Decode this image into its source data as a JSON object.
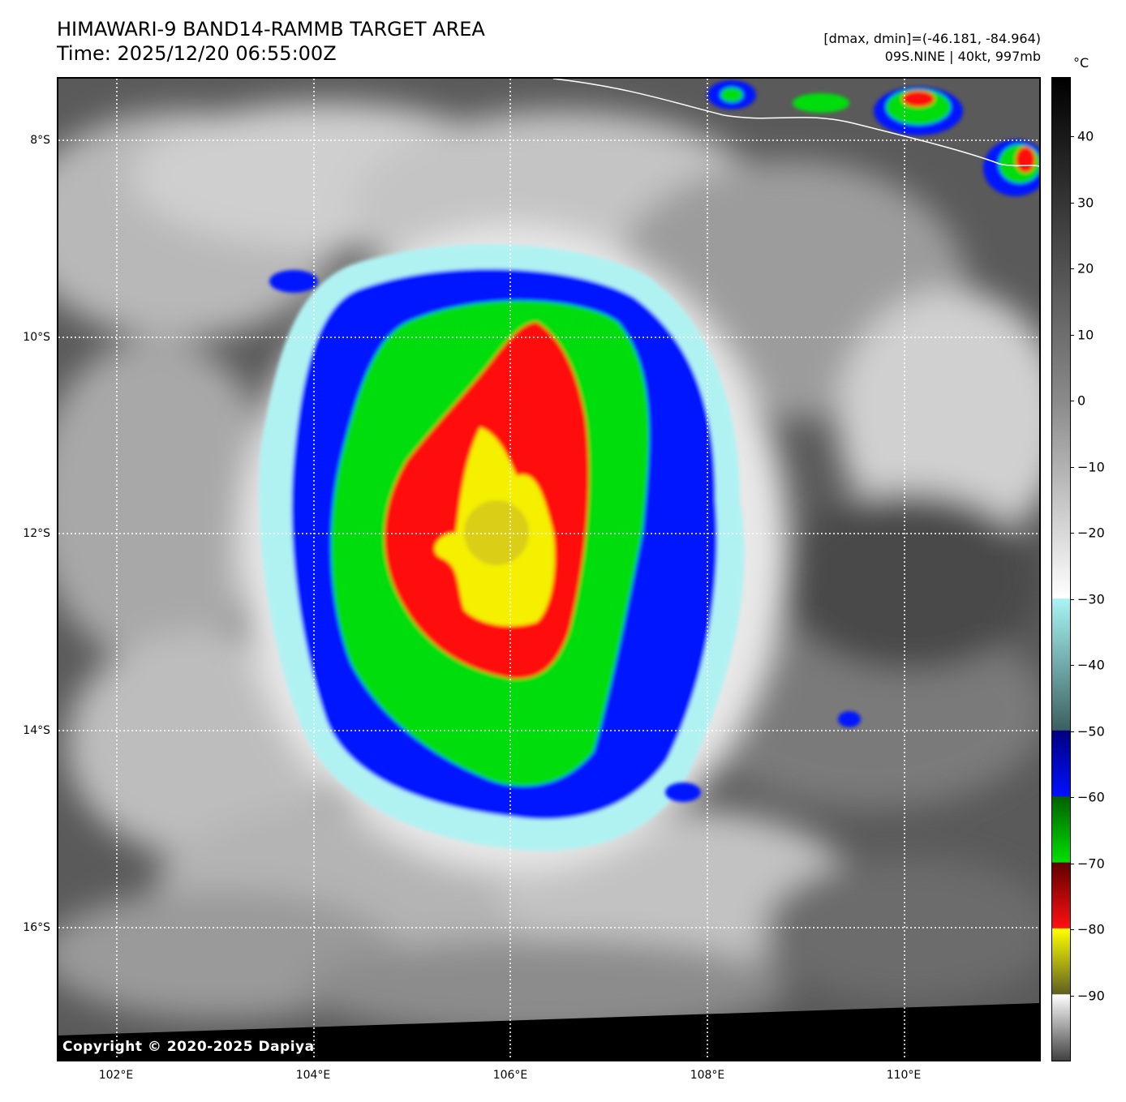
{
  "header": {
    "title_line1": "HIMAWARI-9 BAND14-RAMMB TARGET AREA",
    "title_line2": "Time: 2025/12/20 06:55:00Z",
    "range_info": "[dmax, dmin]=(-46.181, -84.964)",
    "storm_info": "09S.NINE | 40kt, 997mb"
  },
  "map": {
    "copyright": "Copyright © 2020-2025 Dapiya",
    "lat_labels": [
      "8°S",
      "10°S",
      "12°S",
      "14°S",
      "16°S"
    ],
    "lon_labels": [
      "102°E",
      "104°E",
      "106°E",
      "108°E",
      "110°E"
    ],
    "gridlines": true
  },
  "colorbar": {
    "unit": "°C",
    "tick_labels": [
      "40",
      "30",
      "20",
      "10",
      "0",
      "−10",
      "−20",
      "−30",
      "−40",
      "−50",
      "−60",
      "−70",
      "−80",
      "−90"
    ],
    "range": [
      -100,
      49
    ],
    "colors": {
      "warm_top": "#000000",
      "grey_mid": "#8a8a8a",
      "cold_white": "#ffffff",
      "cyan": "#a8f4f4",
      "blue": "#0010ff",
      "green": "#00e000",
      "red": "#ff1010",
      "yellow": "#ffff00"
    }
  }
}
